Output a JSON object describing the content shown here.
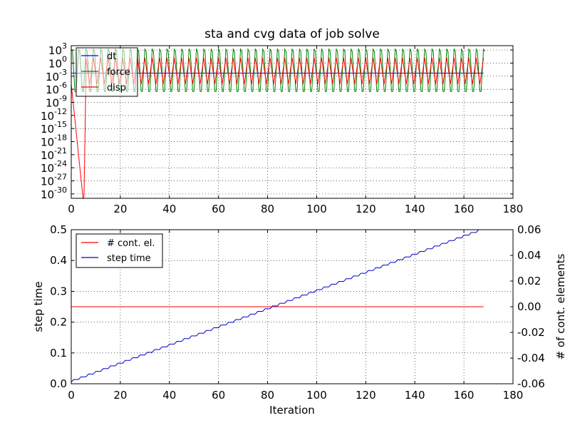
{
  "chart_data": [
    {
      "type": "line",
      "title": "sta and cvg data of job solve",
      "xlabel": "",
      "ylabel": "",
      "yscale": "log",
      "xlim": [
        0,
        180
      ],
      "ylim_exponent": [
        -31,
        4
      ],
      "x_ticks": [
        "0",
        "20",
        "40",
        "60",
        "80",
        "100",
        "120",
        "140",
        "160",
        "180"
      ],
      "y_tick_exponents": [
        "3",
        "0",
        "-3",
        "-6",
        "-9",
        "-12",
        "-15",
        "-18",
        "-21",
        "-24",
        "-27",
        "-30"
      ],
      "y_tick_base": "10",
      "grid": true,
      "legend": "top-left",
      "series": [
        {
          "name": "dt",
          "color": "#0000ff",
          "pattern": "constant",
          "log10": -2.3,
          "x_end": 168
        },
        {
          "name": "force",
          "color": "#008000",
          "pattern": "oscillating",
          "log10_low": -6.5,
          "log10_high": 3.2,
          "period": 3,
          "x_start": 0,
          "x_end": 168
        },
        {
          "name": "disp",
          "color": "#ff0000",
          "pattern": "oscillating",
          "log10_low": -4.8,
          "log10_high": 1.2,
          "period": 3,
          "initial_dip": {
            "x": [
              4.8,
              5.2,
              6.0
            ],
            "log10": [
              -31,
              -30.5,
              -2.5
            ]
          },
          "x_end": 168
        }
      ]
    },
    {
      "type": "line",
      "xlabel": "Iteration",
      "ylabel": "step time",
      "ylabel_right": "# of cont. elements",
      "xlim": [
        0,
        180
      ],
      "ylim": [
        0,
        0.5
      ],
      "ylim_right": [
        -0.06,
        0.06
      ],
      "x_ticks": [
        "0",
        "20",
        "40",
        "60",
        "80",
        "100",
        "120",
        "140",
        "160",
        "180"
      ],
      "y_ticks": [
        "0.0",
        "0.1",
        "0.2",
        "0.3",
        "0.4",
        "0.5"
      ],
      "y_ticks_right": [
        "-0.06",
        "-0.04",
        "-0.02",
        "0.00",
        "0.02",
        "0.04",
        "0.06"
      ],
      "grid": true,
      "legend": "top-left",
      "series": [
        {
          "name": "# cont. el.",
          "color": "#ff0000",
          "axis": "right",
          "x": [
            0,
            168
          ],
          "y": [
            0,
            0
          ]
        },
        {
          "name": "step time",
          "color": "#0000cc",
          "axis": "left",
          "pattern": "staircase",
          "x_start": 0,
          "x_end": 168,
          "y_start": 0.005,
          "y_end": 0.5,
          "step_every": 3
        }
      ]
    }
  ]
}
